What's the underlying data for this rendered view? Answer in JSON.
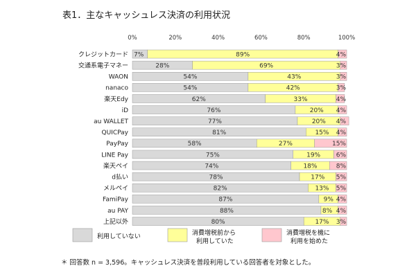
{
  "title": "表1．主なキャッシュレス決済の利用状況",
  "footnote": "＊ 回答数 n = 3,596。キャッシュレス決済を普段利用している回答者を対象とした。",
  "chart_data": {
    "type": "bar",
    "orientation": "horizontal",
    "stacked": true,
    "x_ticks": [
      "0%",
      "20%",
      "40%",
      "60%",
      "80%",
      "100%"
    ],
    "xlim": [
      0,
      100
    ],
    "categories": [
      "クレジットカード",
      "交通系電子マネー",
      "WAON",
      "nanaco",
      "楽天Edy",
      "iD",
      "au WALLET",
      "QUICPay",
      "PayPay",
      "LINE Pay",
      "楽天ペイ",
      "d払い",
      "メルペイ",
      "FamiPay",
      "au PAY",
      "上記以外"
    ],
    "series": [
      {
        "name": "利用していない",
        "color": "#d9d9d9",
        "values": [
          7,
          28,
          54,
          54,
          62,
          76,
          77,
          81,
          58,
          75,
          74,
          78,
          82,
          87,
          88,
          80
        ]
      },
      {
        "name": "消費増税前から\n利用していた",
        "color": "#ffff99",
        "values": [
          89,
          69,
          43,
          42,
          33,
          20,
          20,
          15,
          27,
          19,
          18,
          17,
          13,
          9,
          8,
          17
        ]
      },
      {
        "name": "消費増税を機に\n利用を始めた",
        "color": "#ffc7ce",
        "values": [
          4,
          3,
          3,
          3,
          4,
          4,
          4,
          4,
          15,
          6,
          8,
          5,
          5,
          4,
          4,
          3
        ]
      }
    ],
    "legend_position": "bottom",
    "grid": false
  }
}
